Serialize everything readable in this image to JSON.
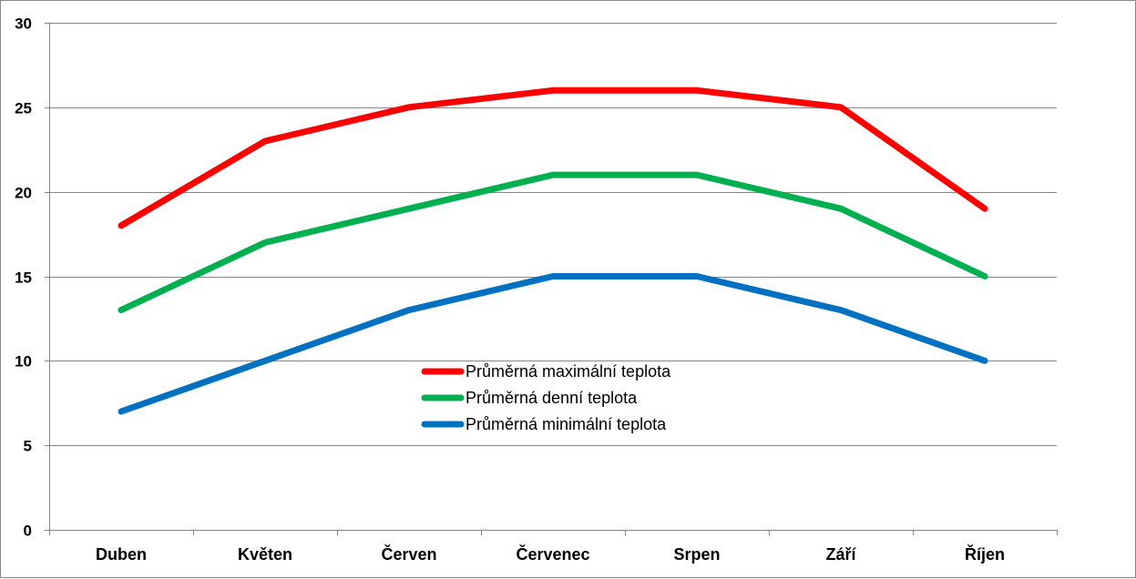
{
  "chart_data": {
    "type": "line",
    "categories": [
      "Duben",
      "Květen",
      "Červen",
      "Červenec",
      "Srpen",
      "Září",
      "Říjen"
    ],
    "ylim": [
      0,
      30
    ],
    "yticks": [
      "0",
      "5",
      "10",
      "15",
      "20",
      "25",
      "30"
    ],
    "grid": true,
    "legend_position": "center",
    "series": [
      {
        "name": "Průměrná maximální teplota",
        "color": "#ff0000",
        "values": [
          18,
          23,
          25,
          26,
          26,
          25,
          19
        ]
      },
      {
        "name": "Průměrná denní teplota",
        "color": "#00b050",
        "values": [
          13,
          17,
          19,
          21,
          21,
          19,
          15
        ]
      },
      {
        "name": "Průměrná minimální teplota",
        "color": "#0070c0",
        "values": [
          7,
          10,
          13,
          15,
          15,
          13,
          10
        ]
      }
    ]
  }
}
